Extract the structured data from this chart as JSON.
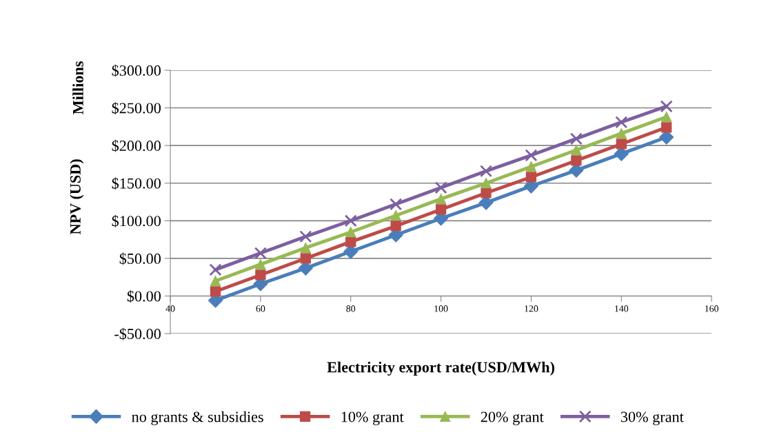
{
  "chart_data": {
    "type": "line",
    "xlabel": "Electricity export rate(USD/MWh)",
    "ylabel": "NPV (USD)",
    "annotations": [
      "Millions"
    ],
    "x": [
      50,
      60,
      70,
      80,
      90,
      100,
      110,
      120,
      130,
      140,
      150
    ],
    "xlim": [
      40,
      160
    ],
    "xticks": [
      40,
      60,
      80,
      100,
      120,
      140,
      160
    ],
    "ylim": [
      -50,
      300
    ],
    "yticks": [
      {
        "value": -50,
        "label": "-$50.00"
      },
      {
        "value": 0,
        "label": "$0.00"
      },
      {
        "value": 50,
        "label": "$50.00"
      },
      {
        "value": 100,
        "label": "$100.00"
      },
      {
        "value": 150,
        "label": "$150.00"
      },
      {
        "value": 200,
        "label": "$200.00"
      },
      {
        "value": 250,
        "label": "$250.00"
      },
      {
        "value": 300,
        "label": "$300.00"
      }
    ],
    "grid": "y",
    "legend": "bottom",
    "series": [
      {
        "name": "no grants & subsidies",
        "color": "#4a7ebb",
        "marker": "diamond",
        "values": [
          -6,
          16,
          37,
          59,
          81,
          103,
          124,
          146,
          167,
          189,
          211
        ]
      },
      {
        "name": "10% grant",
        "color": "#be4b48",
        "marker": "square",
        "values": [
          6,
          28,
          50,
          72,
          93,
          115,
          137,
          158,
          180,
          202,
          224
        ]
      },
      {
        "name": "20% grant",
        "color": "#98b954",
        "marker": "triangle",
        "values": [
          20,
          42,
          64,
          85,
          107,
          129,
          150,
          172,
          194,
          216,
          238
        ]
      },
      {
        "name": "30% grant",
        "color": "#7d5fa0",
        "marker": "cross",
        "values": [
          35,
          57,
          79,
          100,
          122,
          144,
          166,
          187,
          209,
          231,
          252
        ]
      }
    ]
  }
}
